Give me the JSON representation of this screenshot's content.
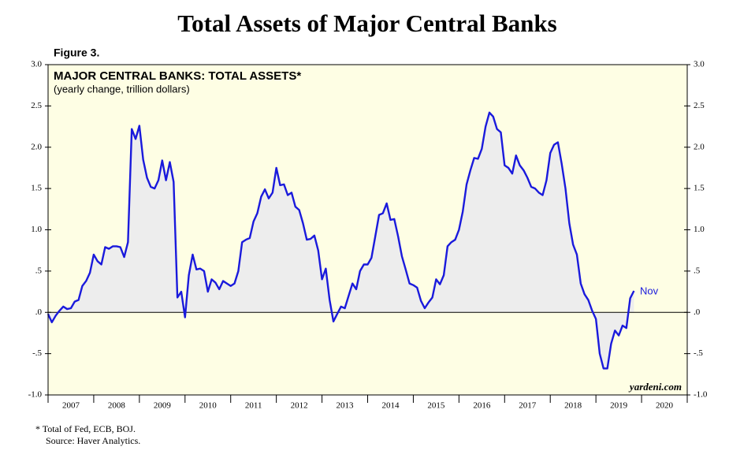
{
  "chart_data": {
    "type": "line",
    "title": "Total Assets of Major Central Banks",
    "figure_label": "Figure 3.",
    "inner_title": "MAJOR CENTRAL BANKS: TOTAL ASSETS*",
    "subtitle": "(yearly change, trillion dollars)",
    "annotation": "Nov",
    "watermark": "yardeni.com",
    "footnotes": [
      "*  Total of Fed, ECB, BOJ.",
      "Source: Haver Analytics."
    ],
    "xlim": [
      2007,
      2021
    ],
    "xticks": [
      {
        "value": 2007.5,
        "label": "2007"
      },
      {
        "value": 2008.5,
        "label": "2008"
      },
      {
        "value": 2009.5,
        "label": "2009"
      },
      {
        "value": 2010.5,
        "label": "2010"
      },
      {
        "value": 2011.5,
        "label": "2011"
      },
      {
        "value": 2012.5,
        "label": "2012"
      },
      {
        "value": 2013.5,
        "label": "2013"
      },
      {
        "value": 2014.5,
        "label": "2014"
      },
      {
        "value": 2015.5,
        "label": "2015"
      },
      {
        "value": 2016.5,
        "label": "2016"
      },
      {
        "value": 2017.5,
        "label": "2017"
      },
      {
        "value": 2018.5,
        "label": "2018"
      },
      {
        "value": 2019.5,
        "label": "2019"
      },
      {
        "value": 2020.5,
        "label": "2020"
      }
    ],
    "ylim": [
      -1,
      3
    ],
    "yticks": [
      {
        "value": 3,
        "label": "3.0"
      },
      {
        "value": 2.5,
        "label": "2.5"
      },
      {
        "value": 2,
        "label": "2.0"
      },
      {
        "value": 1.5,
        "label": "1.5"
      },
      {
        "value": 1,
        "label": "1.0"
      },
      {
        "value": 0.5,
        "label": ".5"
      },
      {
        "value": 0,
        "label": ".0"
      },
      {
        "value": -0.5,
        "label": "-.5"
      },
      {
        "value": -1,
        "label": "-1.0"
      }
    ],
    "y2lim": [
      -1,
      3
    ],
    "y2ticks": [
      {
        "value": 3,
        "label": "3.0"
      },
      {
        "value": 2.5,
        "label": "2.5"
      },
      {
        "value": 2,
        "label": "2.0"
      },
      {
        "value": 1.5,
        "label": "1.5"
      },
      {
        "value": 1,
        "label": "1.0"
      },
      {
        "value": 0.5,
        "label": ".5"
      },
      {
        "value": 0,
        "label": ".0"
      },
      {
        "value": -0.5,
        "label": "-.5"
      },
      {
        "value": -1,
        "label": "-1.0"
      }
    ],
    "background": "#fefee4",
    "area_color": "#ededed",
    "x": [
      2007.0,
      2007.083,
      2007.167,
      2007.25,
      2007.333,
      2007.417,
      2007.5,
      2007.583,
      2007.667,
      2007.75,
      2007.833,
      2007.917,
      2008.0,
      2008.083,
      2008.167,
      2008.25,
      2008.333,
      2008.417,
      2008.5,
      2008.583,
      2008.667,
      2008.75,
      2008.833,
      2008.917,
      2009.0,
      2009.083,
      2009.167,
      2009.25,
      2009.333,
      2009.417,
      2009.5,
      2009.583,
      2009.667,
      2009.75,
      2009.833,
      2009.917,
      2010.0,
      2010.083,
      2010.167,
      2010.25,
      2010.333,
      2010.417,
      2010.5,
      2010.583,
      2010.667,
      2010.75,
      2010.833,
      2010.917,
      2011.0,
      2011.083,
      2011.167,
      2011.25,
      2011.333,
      2011.417,
      2011.5,
      2011.583,
      2011.667,
      2011.75,
      2011.833,
      2011.917,
      2012.0,
      2012.083,
      2012.167,
      2012.25,
      2012.333,
      2012.417,
      2012.5,
      2012.583,
      2012.667,
      2012.75,
      2012.833,
      2012.917,
      2013.0,
      2013.083,
      2013.167,
      2013.25,
      2013.333,
      2013.417,
      2013.5,
      2013.583,
      2013.667,
      2013.75,
      2013.833,
      2013.917,
      2014.0,
      2014.083,
      2014.167,
      2014.25,
      2014.333,
      2014.417,
      2014.5,
      2014.583,
      2014.667,
      2014.75,
      2014.833,
      2014.917,
      2015.0,
      2015.083,
      2015.167,
      2015.25,
      2015.333,
      2015.417,
      2015.5,
      2015.583,
      2015.667,
      2015.75,
      2015.833,
      2015.917,
      2016.0,
      2016.083,
      2016.167,
      2016.25,
      2016.333,
      2016.417,
      2016.5,
      2016.583,
      2016.667,
      2016.75,
      2016.833,
      2016.917,
      2017.0,
      2017.083,
      2017.167,
      2017.25,
      2017.333,
      2017.417,
      2017.5,
      2017.583,
      2017.667,
      2017.75,
      2017.833,
      2017.917,
      2018.0,
      2018.083,
      2018.167,
      2018.25,
      2018.333,
      2018.417,
      2018.5,
      2018.583,
      2018.667,
      2018.75,
      2018.833,
      2018.917,
      2019.0,
      2019.083,
      2019.167,
      2019.25,
      2019.333,
      2019.417,
      2019.5,
      2019.583,
      2019.667,
      2019.75,
      2019.833
    ],
    "series": [
      {
        "name": "Total assets yearly change",
        "color": "#1a1adc",
        "values": [
          -0.02,
          -0.12,
          -0.04,
          0.02,
          0.07,
          0.04,
          0.05,
          0.13,
          0.15,
          0.32,
          0.38,
          0.48,
          0.7,
          0.62,
          0.58,
          0.79,
          0.77,
          0.8,
          0.8,
          0.79,
          0.67,
          0.85,
          2.22,
          2.1,
          2.26,
          1.85,
          1.63,
          1.52,
          1.5,
          1.6,
          1.84,
          1.6,
          1.82,
          1.58,
          0.18,
          0.25,
          -0.06,
          0.45,
          0.7,
          0.52,
          0.53,
          0.5,
          0.25,
          0.4,
          0.36,
          0.28,
          0.38,
          0.35,
          0.32,
          0.35,
          0.5,
          0.85,
          0.88,
          0.9,
          1.1,
          1.2,
          1.4,
          1.49,
          1.38,
          1.45,
          1.75,
          1.54,
          1.55,
          1.42,
          1.45,
          1.28,
          1.24,
          1.08,
          0.88,
          0.89,
          0.93,
          0.75,
          0.4,
          0.53,
          0.15,
          -0.11,
          -0.02,
          0.07,
          0.05,
          0.2,
          0.35,
          0.28,
          0.5,
          0.58,
          0.58,
          0.66,
          0.92,
          1.18,
          1.2,
          1.32,
          1.12,
          1.13,
          0.92,
          0.68,
          0.52,
          0.35,
          0.33,
          0.3,
          0.14,
          0.05,
          0.12,
          0.18,
          0.4,
          0.34,
          0.45,
          0.8,
          0.85,
          0.88,
          1.0,
          1.22,
          1.55,
          1.72,
          1.87,
          1.86,
          1.98,
          2.25,
          2.42,
          2.37,
          2.22,
          2.18,
          1.78,
          1.75,
          1.68,
          1.9,
          1.78,
          1.72,
          1.63,
          1.52,
          1.5,
          1.45,
          1.42,
          1.6,
          1.93,
          2.03,
          2.06,
          1.8,
          1.5,
          1.08,
          0.82,
          0.7,
          0.35,
          0.22,
          0.15,
          0.02,
          -0.08,
          -0.5,
          -0.68,
          -0.68,
          -0.38,
          -0.22,
          -0.28,
          -0.16,
          -0.19,
          0.17,
          0.26
        ]
      }
    ]
  }
}
